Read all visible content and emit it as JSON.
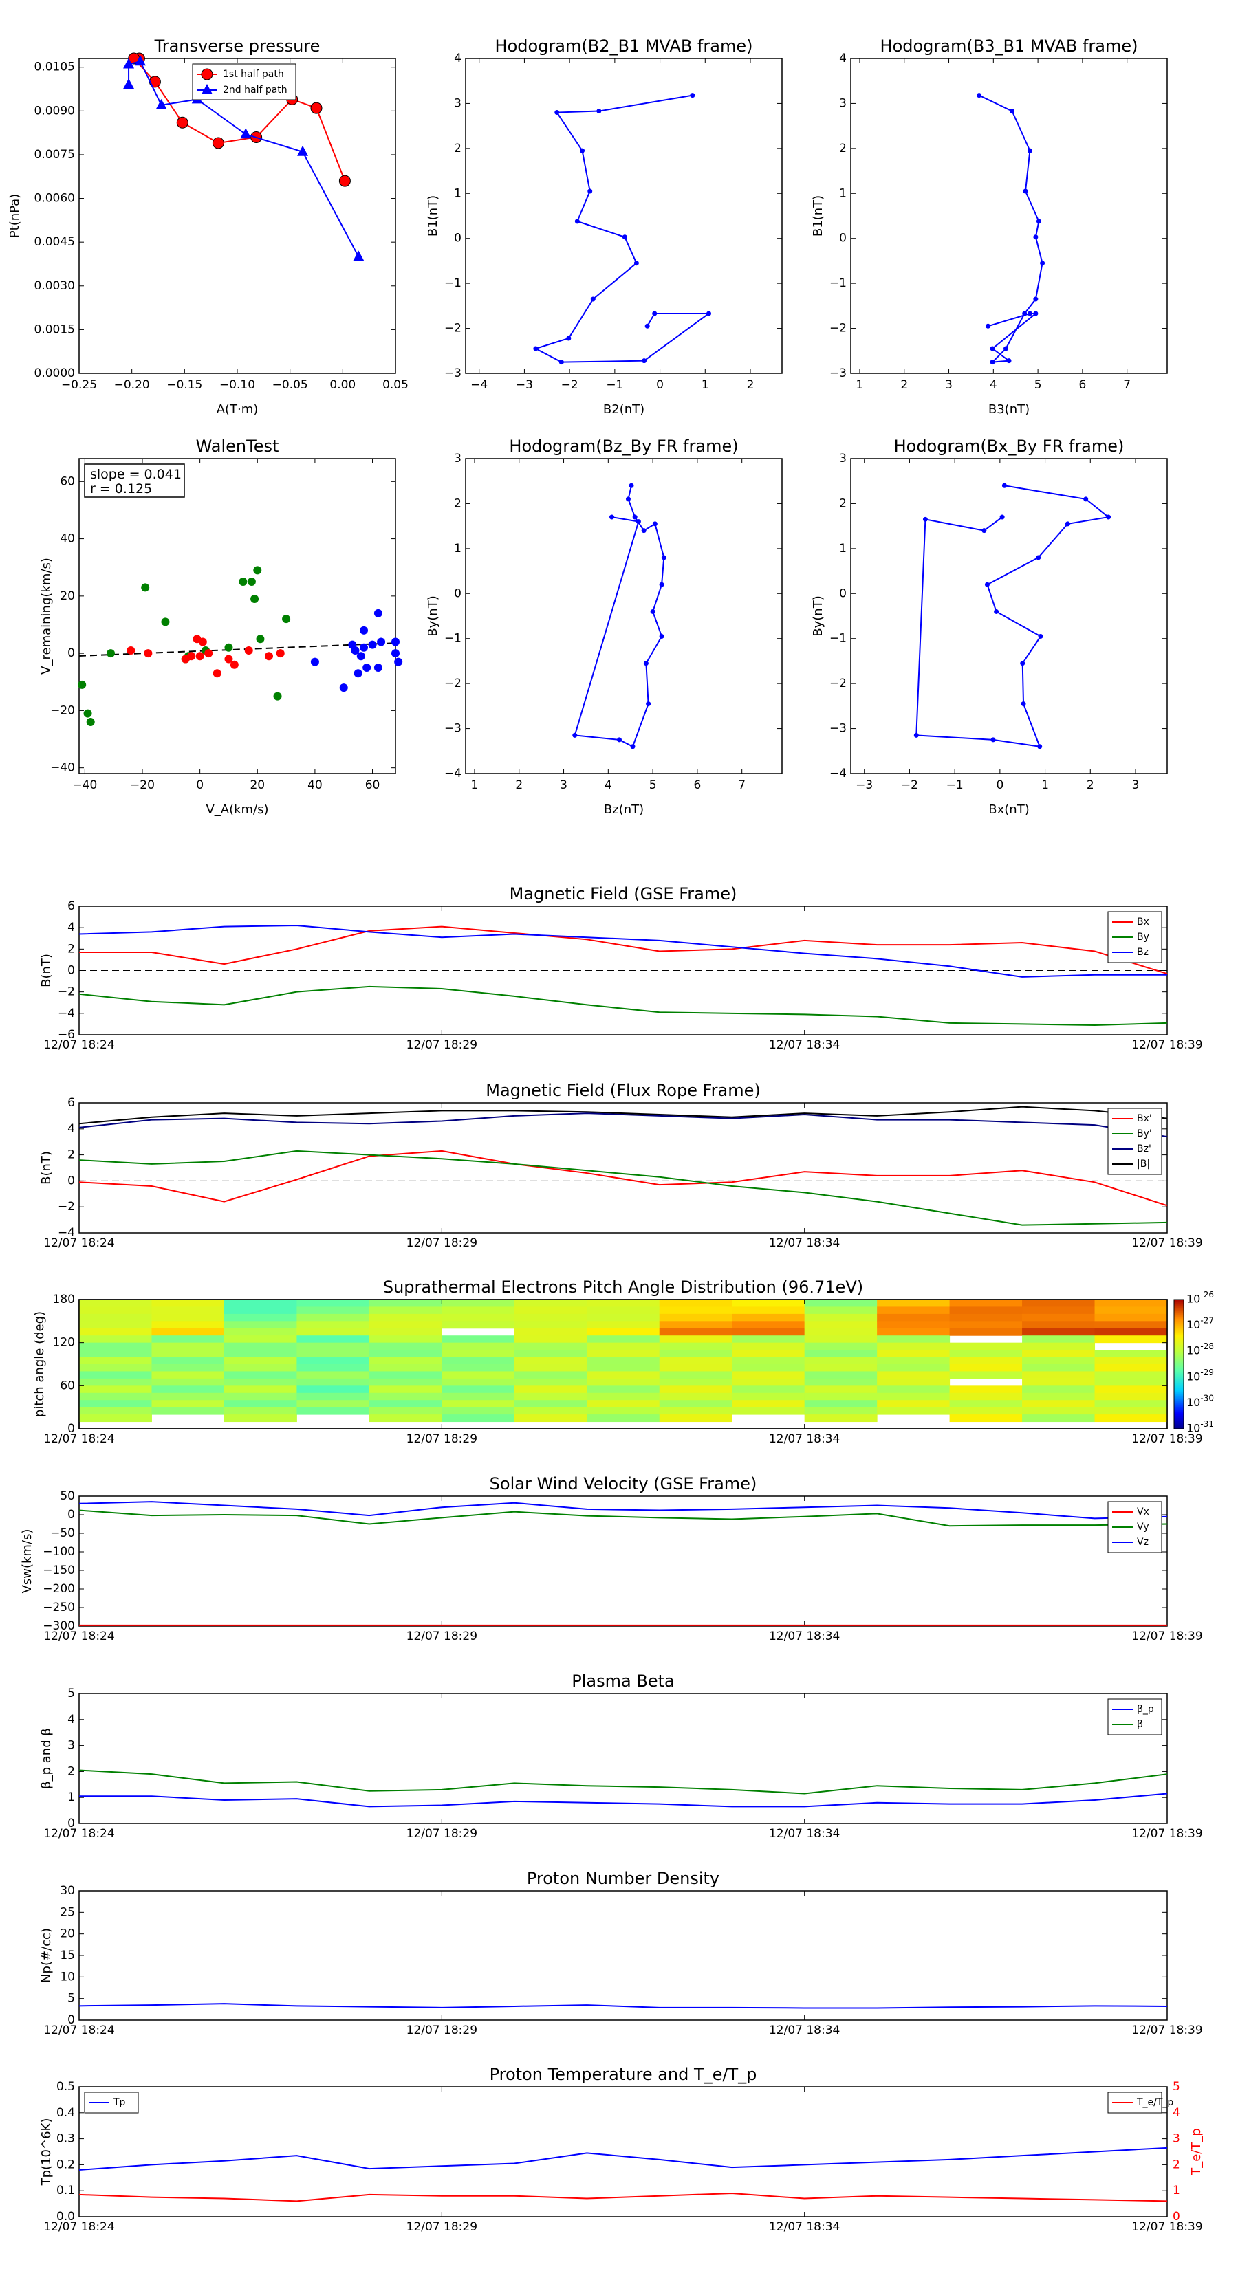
{
  "colors": {
    "red": "#ff0000",
    "green": "#008000",
    "blue": "#0000ff",
    "black": "#000000",
    "darkblue": "#000080"
  },
  "chart_data": [
    {
      "type": "line",
      "title": "Transverse pressure",
      "xlabel": "A(T·m)",
      "ylabel": "Pt(nPa)",
      "xlim": [
        -0.25,
        0.05
      ],
      "ylim": [
        0,
        0.0108
      ],
      "xticks": [
        "−0.25",
        "−0.20",
        "−0.15",
        "−0.10",
        "−0.05",
        "0.00",
        "0.05"
      ],
      "yticks": [
        "0.0000",
        "0.0015",
        "0.0030",
        "0.0045",
        "0.0060",
        "0.0075",
        "0.0090",
        "0.0105"
      ],
      "legend_position": "top-center",
      "series": [
        {
          "name": "1st half path",
          "color": "red",
          "marker": "circle",
          "x": [
            -0.193,
            -0.198,
            -0.178,
            -0.152,
            -0.118,
            -0.082,
            -0.048,
            -0.025,
            0.002
          ],
          "y": [
            0.0108,
            0.0108,
            0.01,
            0.0086,
            0.0079,
            0.0081,
            0.0094,
            0.0091,
            0.0066
          ]
        },
        {
          "name": "2nd half path",
          "color": "blue",
          "marker": "triangle",
          "x": [
            0.015,
            -0.038,
            -0.092,
            -0.138,
            -0.172,
            -0.192,
            -0.203,
            -0.203
          ],
          "y": [
            0.004,
            0.0076,
            0.0082,
            0.0094,
            0.0092,
            0.0107,
            0.0106,
            0.0099
          ]
        }
      ]
    },
    {
      "type": "line",
      "title": "Hodogram(B2_B1 MVAB frame)",
      "xlabel": "B2(nT)",
      "ylabel": "B1(nT)",
      "xlim": [
        -4.3,
        2.7
      ],
      "ylim": [
        -3,
        4
      ],
      "xticks": [
        "−4",
        "−3",
        "−2",
        "−1",
        "0",
        "1",
        "2"
      ],
      "yticks": [
        "−3",
        "−2",
        "−1",
        "0",
        "1",
        "2",
        "3",
        "4"
      ],
      "series": [
        {
          "color": "blue",
          "marker": "dot",
          "x": [
            0.72,
            -1.35,
            -2.28,
            -1.72,
            -1.55,
            -1.83,
            -0.78,
            -0.52,
            -1.48,
            -2.02,
            -2.75,
            -2.18,
            -0.35,
            1.08,
            -0.12,
            -0.28
          ],
          "y": [
            3.18,
            2.83,
            2.8,
            1.95,
            1.05,
            0.38,
            0.03,
            -0.55,
            -1.35,
            -2.22,
            -2.45,
            -2.75,
            -2.72,
            -1.67,
            -1.67,
            -1.95
          ]
        }
      ]
    },
    {
      "type": "line",
      "title": "Hodogram(B3_B1 MVAB frame)",
      "xlabel": "B3(nT)",
      "ylabel": "B1(nT)",
      "xlim": [
        0.8,
        7.9
      ],
      "ylim": [
        -3,
        4
      ],
      "xticks": [
        "1",
        "2",
        "3",
        "4",
        "5",
        "6",
        "7"
      ],
      "yticks": [
        "−3",
        "−2",
        "−1",
        "0",
        "1",
        "2",
        "3",
        "4"
      ],
      "series": [
        {
          "color": "blue",
          "marker": "dot",
          "x": [
            3.68,
            4.42,
            4.82,
            4.72,
            5.02,
            4.95,
            5.1,
            4.95,
            4.7,
            4.28,
            3.98,
            4.35,
            3.98,
            4.95,
            4.82,
            3.88
          ],
          "y": [
            3.18,
            2.83,
            1.95,
            1.05,
            0.38,
            0.03,
            -0.55,
            -1.35,
            -1.67,
            -2.45,
            -2.75,
            -2.72,
            -2.45,
            -1.67,
            -1.67,
            -1.95
          ]
        }
      ]
    },
    {
      "type": "scatter",
      "title": "WalenTest",
      "xlabel": "V_A(km/s)",
      "ylabel": "V_remaining(km/s)",
      "xlim": [
        -42,
        68
      ],
      "ylim": [
        -42,
        68
      ],
      "xticks": [
        "−40",
        "−20",
        "0",
        "20",
        "40",
        "60"
      ],
      "yticks": [
        "−40",
        "−20",
        "0",
        "20",
        "40",
        "60"
      ],
      "annotations": [
        "slope = 0.041",
        "r = 0.125"
      ],
      "fit_line": {
        "slope": 0.041,
        "intercept": 0.8,
        "style": "dashed"
      },
      "series": [
        {
          "color": "green",
          "x": [
            -41,
            -39,
            -38,
            -31,
            -19,
            -12,
            -5,
            -4,
            2,
            10,
            15,
            18,
            19,
            20,
            21,
            27,
            30
          ],
          "y": [
            -11,
            -21,
            -24,
            0,
            23,
            11,
            -2,
            -1,
            1,
            2,
            25,
            25,
            19,
            29,
            5,
            -15,
            12
          ]
        },
        {
          "color": "red",
          "x": [
            -24,
            -18,
            -5,
            -3,
            -1,
            0,
            1,
            3,
            6,
            10,
            12,
            17,
            24,
            28
          ],
          "y": [
            1,
            0,
            -2,
            -1,
            5,
            -1,
            4,
            0,
            -7,
            -2,
            -4,
            1,
            -1,
            0
          ]
        },
        {
          "color": "blue",
          "x": [
            40,
            50,
            53,
            54,
            55,
            56,
            57,
            57,
            58,
            60,
            62,
            62,
            63,
            68,
            68,
            69
          ],
          "y": [
            -3,
            -12,
            3,
            1,
            -7,
            -1,
            8,
            2,
            -5,
            3,
            14,
            -5,
            4,
            4,
            0,
            -3
          ]
        }
      ]
    },
    {
      "type": "line",
      "title": "Hodogram(Bz_By FR frame)",
      "xlabel": "Bz(nT)",
      "ylabel": "By(nT)",
      "xlim": [
        0.8,
        7.9
      ],
      "ylim": [
        -4,
        3
      ],
      "xticks": [
        "1",
        "2",
        "3",
        "4",
        "5",
        "6",
        "7"
      ],
      "yticks": [
        "−4",
        "−3",
        "−2",
        "−1",
        "0",
        "1",
        "2",
        "3"
      ],
      "series": [
        {
          "color": "blue",
          "marker": "dot",
          "x": [
            4.52,
            4.45,
            4.6,
            4.8,
            5.05,
            5.25,
            5.2,
            5.0,
            5.2,
            4.85,
            4.9,
            4.55,
            4.25,
            3.25,
            4.68,
            4.08
          ],
          "y": [
            2.4,
            2.1,
            1.7,
            1.4,
            1.55,
            0.8,
            0.2,
            -0.4,
            -0.95,
            -1.55,
            -2.45,
            -3.4,
            -3.25,
            -3.15,
            1.6,
            1.7
          ]
        }
      ]
    },
    {
      "type": "line",
      "title": "Hodogram(Bx_By FR frame)",
      "xlabel": "Bx(nT)",
      "ylabel": "By(nT)",
      "xlim": [
        -3.3,
        3.7
      ],
      "ylim": [
        -4,
        3
      ],
      "xticks": [
        "−3",
        "−2",
        "−1",
        "0",
        "1",
        "2",
        "3"
      ],
      "yticks": [
        "−4",
        "−3",
        "−2",
        "−1",
        "0",
        "1",
        "2",
        "3"
      ],
      "series": [
        {
          "color": "blue",
          "marker": "dot",
          "x": [
            0.1,
            1.9,
            2.4,
            1.5,
            0.85,
            -0.28,
            -0.08,
            0.9,
            0.5,
            0.52,
            0.88,
            -0.15,
            -1.85,
            -1.65,
            -0.35,
            0.05
          ],
          "y": [
            2.4,
            2.1,
            1.7,
            1.55,
            0.8,
            0.2,
            -0.4,
            -0.95,
            -1.55,
            -2.45,
            -3.4,
            -3.25,
            -3.15,
            1.65,
            1.4,
            1.7
          ]
        }
      ]
    },
    {
      "type": "line",
      "title": "Magnetic Field (GSE Frame)",
      "ylabel": "B(nT)",
      "ylim": [
        -6,
        6
      ],
      "yticks": [
        "−6",
        "−4",
        "−2",
        "0",
        "2",
        "4",
        "6"
      ],
      "xticks": [
        "12/07 18:24",
        "12/07 18:29",
        "12/07 18:34",
        "12/07 18:39"
      ],
      "zero_line": "dashed",
      "legend_position": "top-right",
      "series": [
        {
          "name": "Bx",
          "color": "red",
          "y": [
            1.7,
            1.7,
            0.6,
            2.0,
            3.7,
            4.1,
            3.5,
            2.9,
            1.8,
            2.0,
            2.8,
            2.4,
            2.4,
            2.6,
            1.8,
            -0.3
          ]
        },
        {
          "name": "By",
          "color": "green",
          "y": [
            -2.2,
            -2.9,
            -3.2,
            -2.0,
            -1.5,
            -1.7,
            -2.4,
            -3.2,
            -3.9,
            -4.0,
            -4.1,
            -4.3,
            -4.9,
            -5.0,
            -5.1,
            -4.9
          ]
        },
        {
          "name": "Bz",
          "color": "blue",
          "y": [
            3.4,
            3.6,
            4.1,
            4.2,
            3.6,
            3.1,
            3.4,
            3.1,
            2.8,
            2.2,
            1.6,
            1.1,
            0.4,
            -0.6,
            -0.4,
            -0.4
          ]
        }
      ]
    },
    {
      "type": "line",
      "title": "Magnetic Field (Flux Rope Frame)",
      "ylabel": "B(nT)",
      "ylim": [
        -4,
        6
      ],
      "yticks": [
        "−4",
        "−2",
        "0",
        "2",
        "4",
        "6"
      ],
      "xticks": [
        "12/07 18:24",
        "12/07 18:29",
        "12/07 18:34",
        "12/07 18:39"
      ],
      "zero_line": "dashed",
      "legend_position": "top-right",
      "series": [
        {
          "name": "Bx'",
          "color": "red",
          "y": [
            -0.1,
            -0.4,
            -1.6,
            0.1,
            1.9,
            2.3,
            1.3,
            0.6,
            -0.3,
            -0.1,
            0.7,
            0.4,
            0.4,
            0.8,
            -0.1,
            -1.9
          ]
        },
        {
          "name": "By'",
          "color": "green",
          "y": [
            1.6,
            1.3,
            1.5,
            2.3,
            2.0,
            1.7,
            1.3,
            0.8,
            0.3,
            -0.4,
            -0.9,
            -1.6,
            -2.5,
            -3.4,
            -3.3,
            -3.2
          ]
        },
        {
          "name": "Bz'",
          "color": "darkblue",
          "y": [
            4.1,
            4.7,
            4.8,
            4.5,
            4.4,
            4.6,
            5.0,
            5.2,
            5.0,
            4.8,
            5.1,
            4.7,
            4.7,
            4.5,
            4.3,
            3.4
          ]
        },
        {
          "name": "|B|",
          "color": "black",
          "y": [
            4.4,
            4.9,
            5.2,
            5.0,
            5.2,
            5.4,
            5.4,
            5.3,
            5.1,
            4.9,
            5.2,
            5.0,
            5.3,
            5.7,
            5.4,
            4.8
          ]
        }
      ]
    },
    {
      "type": "heatmap",
      "title": "Suprathermal Electrons Pitch Angle Distribution (96.71eV)",
      "ylabel": "pitch angle (deg)",
      "ylim": [
        0,
        180
      ],
      "yticks": [
        "0",
        "60",
        "120",
        "180"
      ],
      "xticks": [
        "12/07 18:24",
        "12/07 18:29",
        "12/07 18:34",
        "12/07 18:39"
      ],
      "colorbar_ticks": [
        "10",
        "10",
        "10",
        "10",
        "10",
        "10"
      ],
      "colorbar_exponents": [
        "-26",
        "-27",
        "-28",
        "-29",
        "-30",
        "-31"
      ],
      "columns": 15,
      "rows": 18,
      "column_intensity": [
        0.55,
        0.55,
        0.55,
        0.5,
        0.55,
        0.55,
        0.6,
        0.6,
        0.62,
        0.62,
        0.58,
        0.62,
        0.65,
        0.62,
        0.65
      ],
      "top_intensity": [
        0.7,
        0.75,
        0.55,
        0.6,
        0.65,
        0.65,
        0.7,
        0.72,
        0.85,
        0.85,
        0.65,
        0.88,
        0.92,
        0.95,
        0.92
      ]
    },
    {
      "type": "line",
      "title": "Solar Wind Velocity (GSE Frame)",
      "ylabel": "Vsw(km/s)",
      "ylim": [
        -300,
        50
      ],
      "yticks": [
        "−300",
        "−250",
        "−200",
        "−150",
        "−100",
        "−50",
        "0",
        "50"
      ],
      "xticks": [
        "12/07 18:24",
        "12/07 18:29",
        "12/07 18:34",
        "12/07 18:39"
      ],
      "legend_position": "top-right",
      "series": [
        {
          "name": "Vx",
          "color": "red",
          "y": [
            -298,
            -298,
            -298,
            -298,
            -298,
            -298,
            -298,
            -298,
            -298,
            -298,
            -298,
            -298,
            -298,
            -298,
            -298,
            -298
          ]
        },
        {
          "name": "Vy",
          "color": "green",
          "y": [
            12,
            -2,
            0,
            -2,
            -25,
            -8,
            8,
            -3,
            -8,
            -12,
            -5,
            3,
            -30,
            -28,
            -28,
            -25
          ]
        },
        {
          "name": "Vz",
          "color": "blue",
          "y": [
            30,
            35,
            25,
            15,
            -2,
            20,
            32,
            15,
            12,
            15,
            20,
            25,
            18,
            5,
            -10,
            -5
          ]
        }
      ]
    },
    {
      "type": "line",
      "title": "Plasma Beta",
      "ylabel": "β_p and β",
      "ylim": [
        0,
        5
      ],
      "yticks": [
        "0",
        "1",
        "2",
        "3",
        "4",
        "5"
      ],
      "xticks": [
        "12/07 18:24",
        "12/07 18:29",
        "12/07 18:34",
        "12/07 18:39"
      ],
      "legend_position": "top-right",
      "series": [
        {
          "name": "β_p",
          "color": "blue",
          "y": [
            1.05,
            1.05,
            0.9,
            0.95,
            0.65,
            0.7,
            0.85,
            0.8,
            0.75,
            0.65,
            0.65,
            0.8,
            0.75,
            0.75,
            0.9,
            1.15
          ]
        },
        {
          "name": "β",
          "color": "green",
          "y": [
            2.05,
            1.9,
            1.55,
            1.6,
            1.25,
            1.3,
            1.55,
            1.45,
            1.4,
            1.3,
            1.15,
            1.45,
            1.35,
            1.3,
            1.55,
            1.9
          ]
        }
      ]
    },
    {
      "type": "line",
      "title": "Proton Number Density",
      "ylabel": "Np(#/cc)",
      "ylim": [
        0,
        30
      ],
      "yticks": [
        "0",
        "5",
        "10",
        "15",
        "20",
        "25",
        "30"
      ],
      "xticks": [
        "12/07 18:24",
        "12/07 18:29",
        "12/07 18:34",
        "12/07 18:39"
      ],
      "series": [
        {
          "color": "blue",
          "y": [
            3.3,
            3.5,
            3.8,
            3.3,
            3.1,
            2.9,
            3.2,
            3.5,
            2.9,
            2.9,
            2.8,
            2.8,
            3.0,
            3.1,
            3.3,
            3.2
          ]
        }
      ]
    },
    {
      "type": "line",
      "title": "Proton Temperature and T_e/T_p",
      "ylabel": "Tp(10^6K)",
      "ylabel_right": "T_e/T_p",
      "ylim": [
        0,
        0.5
      ],
      "ylim_right": [
        0,
        5
      ],
      "yticks": [
        "0.0",
        "0.1",
        "0.2",
        "0.3",
        "0.4",
        "0.5"
      ],
      "yticks_right": [
        "0",
        "1",
        "2",
        "3",
        "4",
        "5"
      ],
      "xticks": [
        "12/07 18:24",
        "12/07 18:29",
        "12/07 18:34",
        "12/07 18:39"
      ],
      "series": [
        {
          "name": "Tp",
          "color": "blue",
          "legend_position": "top-left",
          "y": [
            0.18,
            0.2,
            0.215,
            0.235,
            0.185,
            0.195,
            0.205,
            0.245,
            0.22,
            0.19,
            0.2,
            0.21,
            0.22,
            0.235,
            0.25,
            0.265
          ]
        },
        {
          "name": "T_e/T_p",
          "color": "red",
          "axis": "right",
          "legend_position": "top-right",
          "y": [
            0.85,
            0.75,
            0.7,
            0.6,
            0.85,
            0.8,
            0.8,
            0.7,
            0.8,
            0.9,
            0.7,
            0.8,
            0.75,
            0.7,
            0.65,
            0.6
          ]
        }
      ]
    }
  ]
}
